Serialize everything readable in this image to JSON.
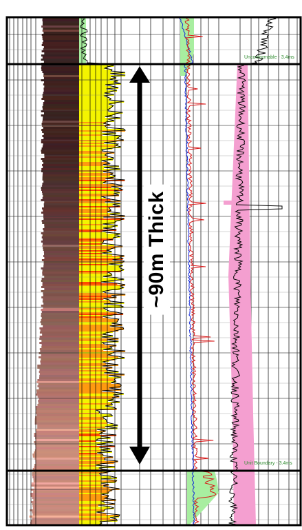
{
  "annotation": {
    "thickness_label": "~90m Thick"
  },
  "markers": {
    "top_label": "Unconformable - 3.4ms",
    "base_label": "Unit Boundary - 3.4ms"
  },
  "colors": {
    "lithology_dark": "#3f2221",
    "lithology_light": "#c79c8e",
    "gamma_yellow": "#f4f400",
    "gamma_orange": "#ff9a10",
    "gamma_red": "#ff4a00",
    "green_fill": "#a8eea0",
    "pink_fill": "#f49fd0",
    "curve_red": "#d81616",
    "curve_blue": "#1428d8",
    "marker_text_green": "#2e8b2e",
    "grid": "#000000",
    "frame": "#000000"
  }
}
